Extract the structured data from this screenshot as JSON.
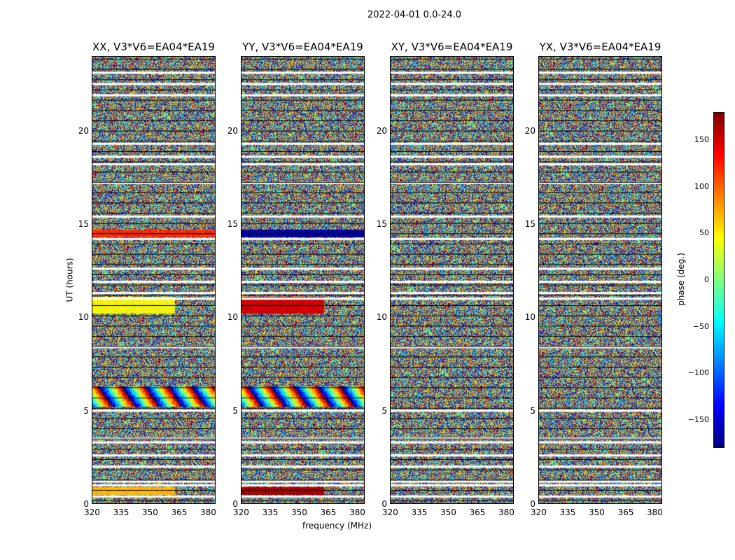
{
  "figure": {
    "title": "2022-04-01 0.0-24.0"
  },
  "chart_data": {
    "type": "heatmap",
    "xlabel": "frequency (MHz)",
    "ylabel": "UT (hours)",
    "xlim": [
      320,
      384
    ],
    "ylim": [
      0,
      24
    ],
    "xticks": [
      320,
      335,
      350,
      365,
      380
    ],
    "yticks": [
      0,
      5,
      10,
      15,
      20
    ],
    "panels": [
      {
        "title": "XX, V3*V6=EA04*EA19",
        "coherent_bands": [
          {
            "t": [
              14.3,
              14.7
            ],
            "phase": 120
          },
          {
            "t": [
              10.2,
              11.1
            ],
            "phase": 45,
            "fmax": 363
          },
          {
            "t": [
              0.5,
              0.9
            ],
            "phase": 70,
            "fmax": 363
          }
        ],
        "fringe_band": [
          5.2,
          6.3
        ]
      },
      {
        "title": "YY, V3*V6=EA04*EA19",
        "coherent_bands": [
          {
            "t": [
              14.3,
              14.7
            ],
            "phase": -165
          },
          {
            "t": [
              10.2,
              11.1
            ],
            "phase": 150,
            "fmax": 363
          },
          {
            "t": [
              0.5,
              0.9
            ],
            "phase": 165,
            "fmax": 363
          }
        ],
        "fringe_band": [
          5.2,
          6.3
        ]
      },
      {
        "title": "XY, V3*V6=EA04*EA19",
        "coherent_bands": [],
        "fringe_band": []
      },
      {
        "title": "YX, V3*V6=EA04*EA19",
        "coherent_bands": [],
        "fringe_band": []
      }
    ],
    "flagged_rows_ut": [
      0.4,
      1.0,
      1.2,
      2.0,
      2.6,
      3.3,
      3.5,
      5.0,
      8.4,
      11.0,
      11.3,
      11.9,
      12.6,
      14.2,
      15.4,
      17.2,
      18.2,
      18.6,
      19.3,
      21.9,
      22.5,
      23.1
    ],
    "colorbar": {
      "label": "phase (deg.)",
      "range": [
        -180,
        180
      ],
      "ticks": [
        -150,
        -100,
        -50,
        0,
        50,
        100,
        150
      ],
      "tick_labels": [
        "−150",
        "−100",
        "−50",
        "0",
        "50",
        "100",
        "150"
      ],
      "colormap": "jet"
    }
  }
}
